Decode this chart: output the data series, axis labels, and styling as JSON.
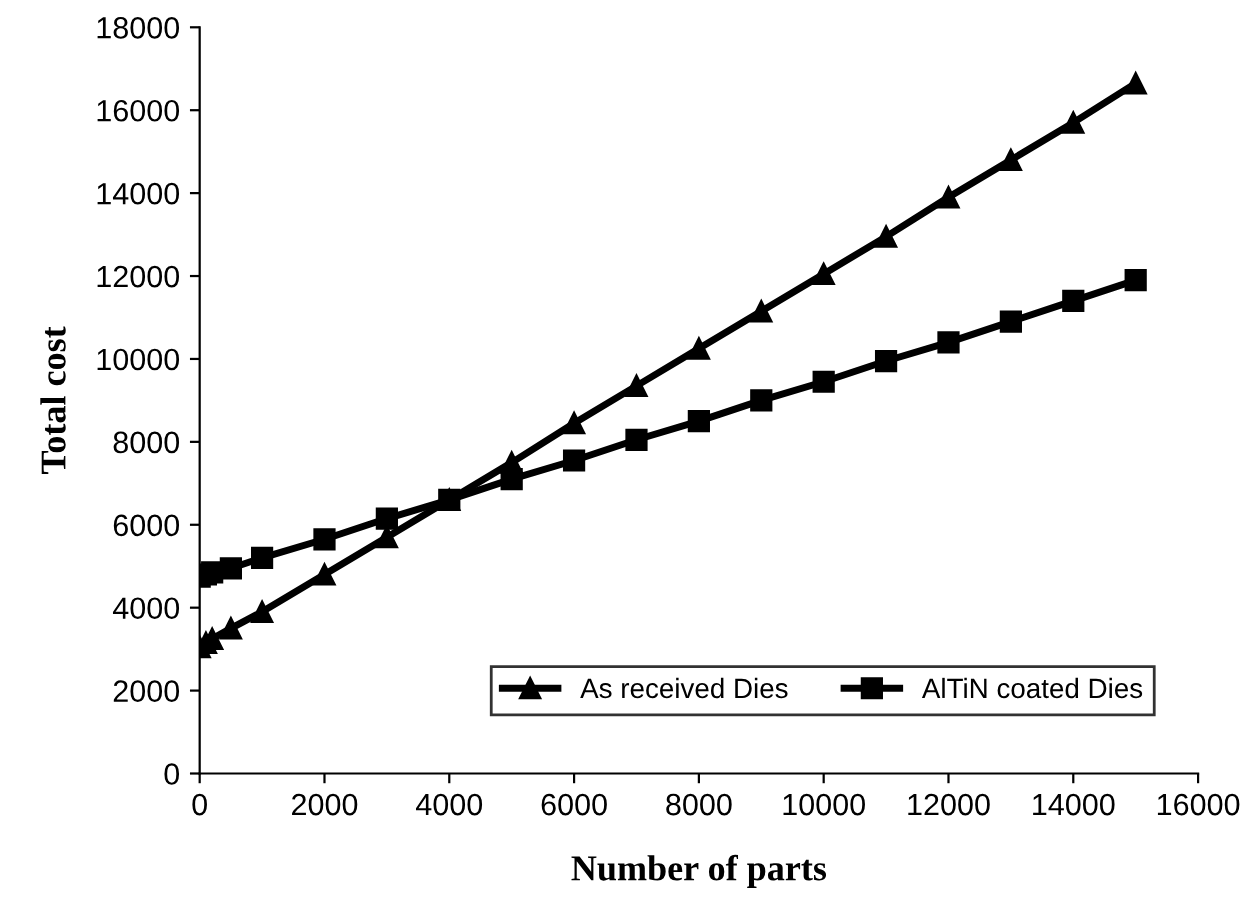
{
  "chart_data": {
    "type": "line",
    "xlabel": "Number of parts",
    "ylabel": "Total cost",
    "xlim": [
      0,
      16000
    ],
    "xticks": [
      0,
      2000,
      4000,
      6000,
      8000,
      10000,
      12000,
      14000,
      16000
    ],
    "ylim": [
      0,
      18000
    ],
    "yticks": [
      0,
      2000,
      4000,
      6000,
      8000,
      10000,
      12000,
      14000,
      16000,
      18000
    ],
    "grid": false,
    "legend": "bottom right",
    "x": [
      0,
      100,
      200,
      500,
      1000,
      2000,
      3000,
      4000,
      5000,
      6000,
      7000,
      8000,
      9000,
      10000,
      11000,
      12000,
      13000,
      14000,
      15000
    ],
    "series": [
      {
        "name": "As received Dies",
        "color": "#000000",
        "marker": "triangle",
        "values": [
          3050,
          3150,
          3250,
          3500,
          3900,
          4800,
          5700,
          6600,
          7500,
          8450,
          9350,
          10250,
          11150,
          12050,
          12950,
          13900,
          14800,
          15700,
          16650
        ]
      },
      {
        "name": "AlTiN coated Dies",
        "color": "#000000",
        "marker": "square",
        "values": [
          4750,
          4800,
          4850,
          4950,
          5200,
          5650,
          6150,
          6600,
          7100,
          7550,
          8050,
          8500,
          9000,
          9450,
          9950,
          10400,
          10900,
          11400,
          11900
        ]
      }
    ]
  }
}
